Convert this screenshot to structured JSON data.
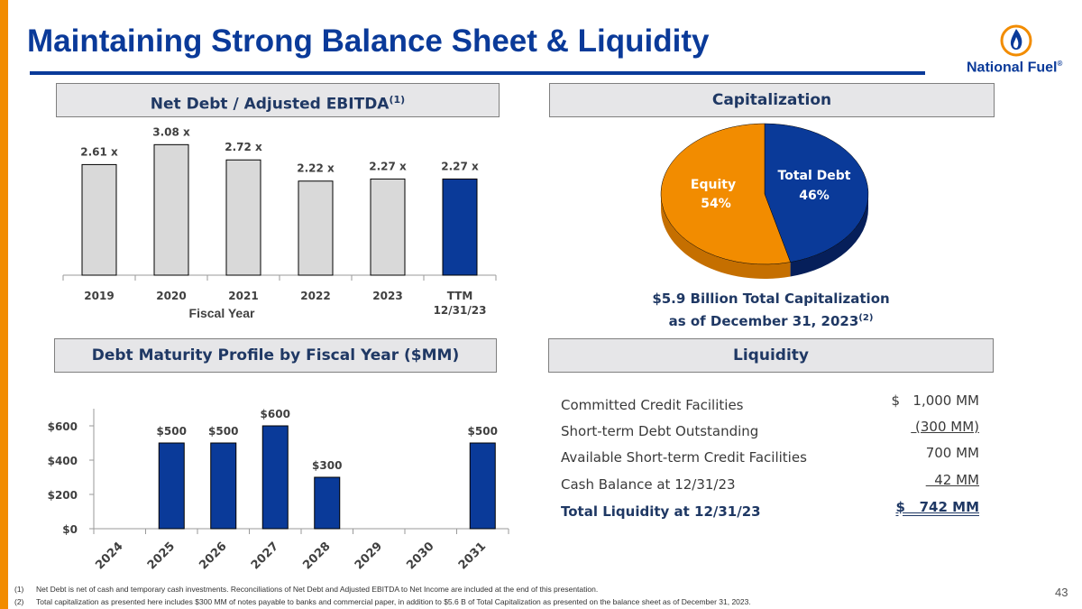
{
  "slide": {
    "title": "Maintaining Strong Balance Sheet & Liquidity",
    "logo_text": "National Fuel",
    "logo_mark": "®",
    "page_number": "43",
    "colors": {
      "navy": "#0a3a99",
      "orange": "#f28c00",
      "gray_bar": "#d9d9d9",
      "panel": "#e6e6e8"
    }
  },
  "sections": {
    "net_debt": {
      "title": "Net Debt / Adjusted EBITDA",
      "sup": "(1)"
    },
    "capitalization": {
      "title": "Capitalization"
    },
    "debt_maturity": {
      "title": "Debt Maturity Profile by Fiscal Year ($MM)"
    },
    "liquidity": {
      "title": "Liquidity"
    }
  },
  "chart_data": [
    {
      "type": "bar",
      "title": "Net Debt / Adjusted EBITDA",
      "categories": [
        "2019",
        "2020",
        "2021",
        "2022",
        "2023",
        "TTM"
      ],
      "category_sublabels": [
        "",
        "",
        "",
        "",
        "",
        "12/31/23"
      ],
      "values": [
        2.61,
        3.08,
        2.72,
        2.22,
        2.27,
        2.27
      ],
      "labels": [
        "2.61 x",
        "3.08 x",
        "2.72 x",
        "2.22 x",
        "2.27 x",
        "2.27 x"
      ],
      "xlabel": "Fiscal Year",
      "ylim": [
        0,
        3.3
      ]
    },
    {
      "type": "pie",
      "title": "Capitalization",
      "slices": [
        {
          "name": "Total Debt",
          "value": 46,
          "label": "46%"
        },
        {
          "name": "Equity",
          "value": 54,
          "label": "54%"
        }
      ],
      "caption_line1": "$5.9 Billion Total Capitalization",
      "caption_line2": "as of December 31, 2023",
      "caption_sup": "(2)"
    },
    {
      "type": "bar",
      "title": "Debt Maturity Profile by Fiscal Year ($MM)",
      "categories": [
        "2024",
        "2025",
        "2026",
        "2027",
        "2028",
        "2029",
        "2030",
        "2031"
      ],
      "values": [
        0,
        500,
        500,
        600,
        300,
        0,
        0,
        500
      ],
      "labels": [
        "",
        "$500",
        "$500",
        "$600",
        "$300",
        "",
        "",
        "$500"
      ],
      "yticks": [
        "$0",
        "$200",
        "$400",
        "$600"
      ],
      "ylim": [
        0,
        700
      ]
    }
  ],
  "liquidity": {
    "rows": [
      {
        "label": "Committed Credit Facilities",
        "value": "$   1,000 MM",
        "underline": false,
        "bold": false
      },
      {
        "label": "Short-term Debt Outstanding",
        "value": " (300 MM)",
        "underline": true,
        "bold": false
      },
      {
        "label": "Available Short-term Credit Facilities",
        "value": "700 MM",
        "underline": false,
        "bold": false
      },
      {
        "label": "Cash Balance at 12/31/23",
        "value": "  42 MM",
        "underline": true,
        "bold": false
      },
      {
        "label": "Total Liquidity at 12/31/23",
        "value": "$   742 MM",
        "underline": true,
        "bold": true
      }
    ]
  },
  "footnotes": [
    {
      "num": "(1)",
      "text": "Net Debt is net of cash and temporary cash investments.  Reconciliations of Net Debt and Adjusted EBITDA to Net Income are included at the end of this presentation."
    },
    {
      "num": "(2)",
      "text": "Total capitalization as presented here includes $300 MM of notes payable to banks and commercial paper, in addition to $5.6 B of Total Capitalization as presented on the balance sheet as of December 31, 2023."
    }
  ]
}
